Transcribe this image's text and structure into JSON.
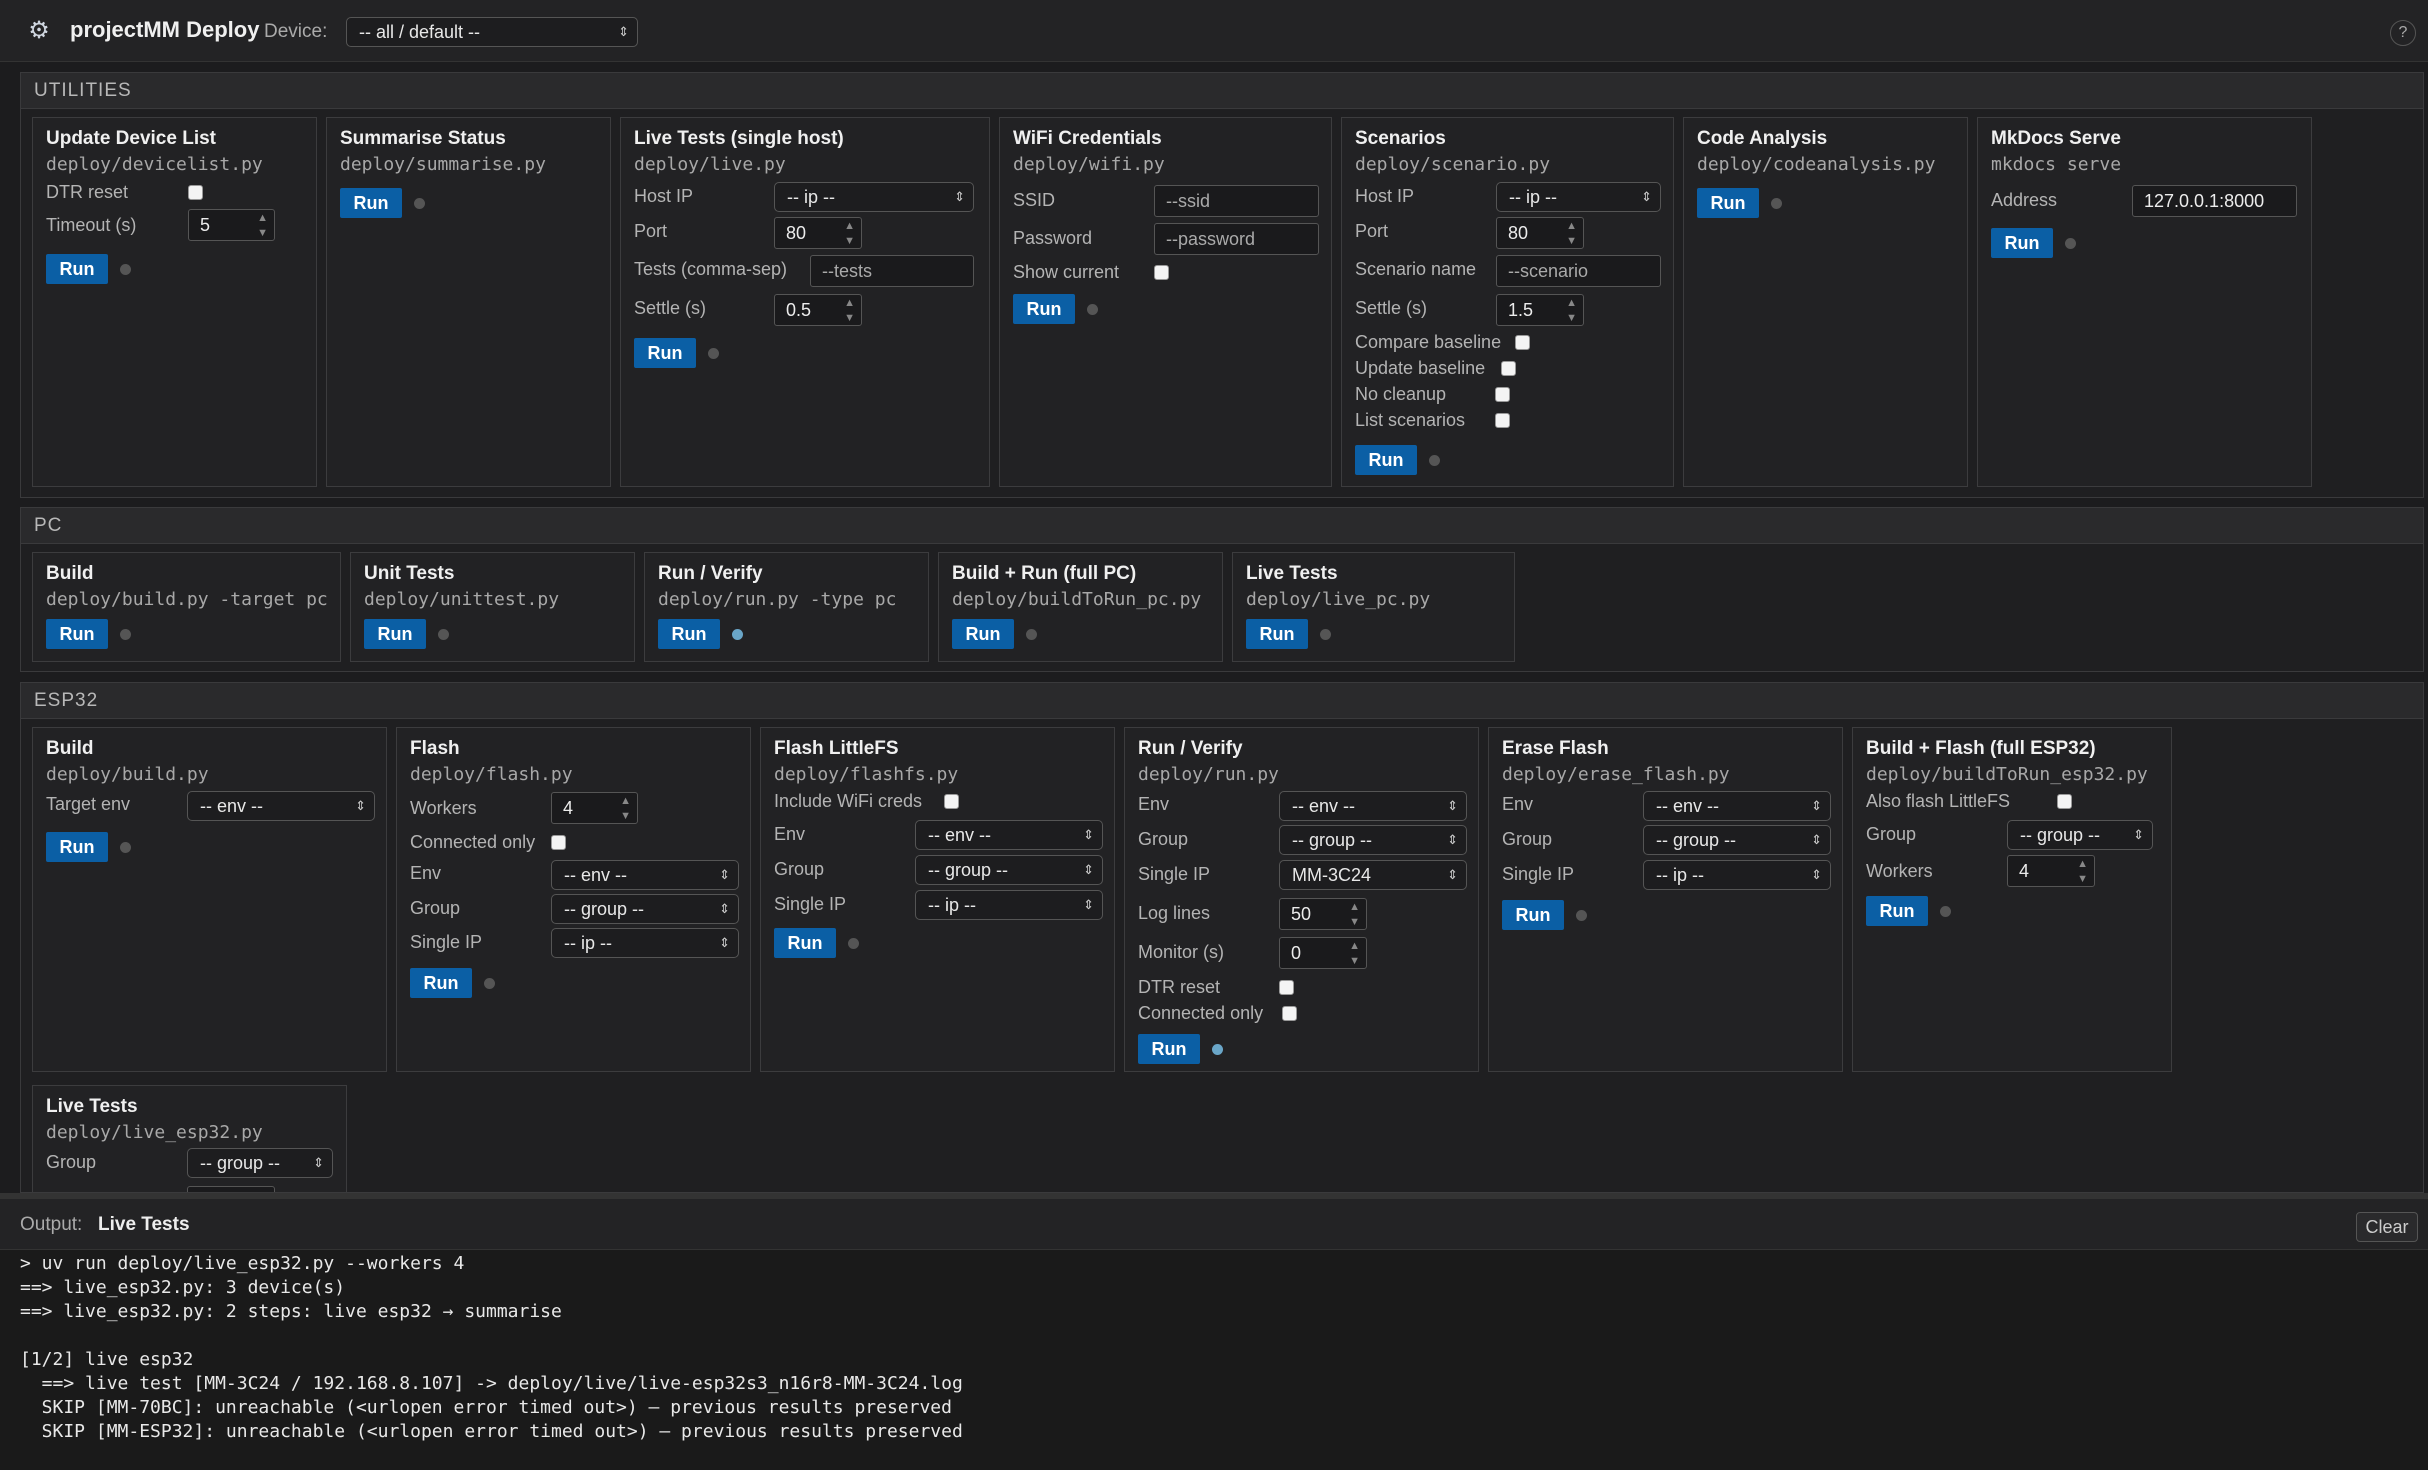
{
  "header": {
    "app_title": "projectMM Deploy",
    "device_label": "Device:",
    "device_select": "-- all / default --",
    "help": "?"
  },
  "utilities": {
    "title": "UTILITIES",
    "cards": {
      "update_device_list": {
        "title": "Update Device List",
        "script": "deploy/devicelist.py",
        "dtr_label": "DTR reset",
        "timeout_label": "Timeout (s)",
        "timeout_value": "5",
        "run": "Run"
      },
      "summarise_status": {
        "title": "Summarise Status",
        "script": "deploy/summarise.py",
        "run": "Run"
      },
      "live_tests_single": {
        "title": "Live Tests (single host)",
        "script": "deploy/live.py",
        "host_label": "Host IP",
        "host_value": "-- ip --",
        "port_label": "Port",
        "port_value": "80",
        "tests_label": "Tests (comma-sep)",
        "tests_placeholder": "--tests",
        "settle_label": "Settle (s)",
        "settle_value": "0.5",
        "run": "Run"
      },
      "wifi": {
        "title": "WiFi Credentials",
        "script": "deploy/wifi.py",
        "ssid_label": "SSID",
        "ssid_placeholder": "--ssid",
        "password_label": "Password",
        "password_placeholder": "--password",
        "show_label": "Show current",
        "run": "Run"
      },
      "scenarios": {
        "title": "Scenarios",
        "script": "deploy/scenario.py",
        "host_label": "Host IP",
        "host_value": "-- ip --",
        "port_label": "Port",
        "port_value": "80",
        "scenario_label": "Scenario name",
        "scenario_placeholder": "--scenario",
        "settle_label": "Settle (s)",
        "settle_value": "1.5",
        "compare_label": "Compare baseline",
        "update_label": "Update baseline",
        "nocleanup_label": "No cleanup",
        "list_label": "List scenarios",
        "run": "Run"
      },
      "code_analysis": {
        "title": "Code Analysis",
        "script": "deploy/codeanalysis.py",
        "run": "Run"
      },
      "mkdocs": {
        "title": "MkDocs Serve",
        "script": "mkdocs serve",
        "address_label": "Address",
        "address_value": "127.0.0.1:8000",
        "run": "Run"
      }
    }
  },
  "pc": {
    "title": "PC",
    "cards": {
      "build": {
        "title": "Build",
        "script": "deploy/build.py -target pc",
        "run": "Run"
      },
      "unit_tests": {
        "title": "Unit Tests",
        "script": "deploy/unittest.py",
        "run": "Run"
      },
      "run_verify": {
        "title": "Run / Verify",
        "script": "deploy/run.py -type pc",
        "run": "Run"
      },
      "build_run": {
        "title": "Build + Run (full PC)",
        "script": "deploy/buildToRun_pc.py",
        "run": "Run"
      },
      "live_tests": {
        "title": "Live Tests",
        "script": "deploy/live_pc.py",
        "run": "Run"
      }
    }
  },
  "esp32": {
    "title": "ESP32",
    "cards": {
      "build": {
        "title": "Build",
        "script": "deploy/build.py",
        "env_label": "Target env",
        "env_value": "-- env --",
        "run": "Run"
      },
      "flash": {
        "title": "Flash",
        "script": "deploy/flash.py",
        "workers_label": "Workers",
        "workers_value": "4",
        "connected_label": "Connected only",
        "env_label": "Env",
        "env_value": "-- env --",
        "group_label": "Group",
        "group_value": "-- group --",
        "ip_label": "Single IP",
        "ip_value": "-- ip --",
        "run": "Run"
      },
      "flash_littlefs": {
        "title": "Flash LittleFS",
        "script": "deploy/flashfs.py",
        "wifi_label": "Include WiFi creds",
        "env_label": "Env",
        "env_value": "-- env --",
        "group_label": "Group",
        "group_value": "-- group --",
        "ip_label": "Single IP",
        "ip_value": "-- ip --",
        "run": "Run"
      },
      "run_verify": {
        "title": "Run / Verify",
        "script": "deploy/run.py",
        "env_label": "Env",
        "env_value": "-- env --",
        "group_label": "Group",
        "group_value": "-- group --",
        "ip_label": "Single IP",
        "ip_value": "MM-3C24",
        "log_label": "Log lines",
        "log_value": "50",
        "monitor_label": "Monitor (s)",
        "monitor_value": "0",
        "dtr_label": "DTR reset",
        "connected_label": "Connected only",
        "run": "Run"
      },
      "erase_flash": {
        "title": "Erase Flash",
        "script": "deploy/erase_flash.py",
        "env_label": "Env",
        "env_value": "-- env --",
        "group_label": "Group",
        "group_value": "-- group --",
        "ip_label": "Single IP",
        "ip_value": "-- ip --",
        "run": "Run"
      },
      "build_flash": {
        "title": "Build + Flash (full ESP32)",
        "script": "deploy/buildToRun_esp32.py",
        "also_label": "Also flash LittleFS",
        "group_label": "Group",
        "group_value": "-- group --",
        "workers_label": "Workers",
        "workers_value": "4",
        "run": "Run"
      },
      "live_tests": {
        "title": "Live Tests",
        "script": "deploy/live_esp32.py",
        "group_label": "Group",
        "group_value": "-- group --"
      }
    }
  },
  "output": {
    "label": "Output:",
    "title": "Live Tests",
    "clear": "Clear",
    "lines": [
      "> uv run deploy/live_esp32.py --workers 4",
      "==> live_esp32.py: 3 device(s)",
      "==> live_esp32.py: 2 steps: live esp32 → summarise",
      "",
      "[1/2] live esp32",
      "  ==> live test [MM-3C24 / 192.168.8.107] -> deploy/live/live-esp32s3_n16r8-MM-3C24.log",
      "  SKIP [MM-70BC]: unreachable (<urlopen error timed out>) — previous results preserved",
      "  SKIP [MM-ESP32]: unreachable (<urlopen error timed out>) — previous results preserved"
    ]
  }
}
